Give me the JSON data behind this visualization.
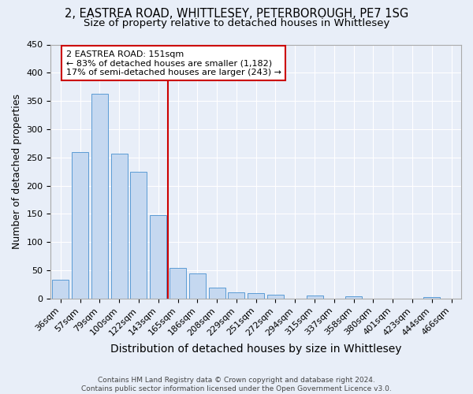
{
  "title1": "2, EASTREA ROAD, WHITTLESEY, PETERBOROUGH, PE7 1SG",
  "title2": "Size of property relative to detached houses in Whittlesey",
  "xlabel": "Distribution of detached houses by size in Whittlesey",
  "ylabel": "Number of detached properties",
  "categories": [
    "36sqm",
    "57sqm",
    "79sqm",
    "100sqm",
    "122sqm",
    "143sqm",
    "165sqm",
    "186sqm",
    "208sqm",
    "229sqm",
    "251sqm",
    "272sqm",
    "294sqm",
    "315sqm",
    "337sqm",
    "358sqm",
    "380sqm",
    "401sqm",
    "423sqm",
    "444sqm",
    "466sqm"
  ],
  "values": [
    33,
    260,
    363,
    257,
    225,
    148,
    55,
    44,
    19,
    11,
    10,
    7,
    0,
    6,
    0,
    4,
    0,
    0,
    0,
    3,
    0
  ],
  "bar_color": "#c5d8f0",
  "bar_edge_color": "#5b9bd5",
  "vline_x": 5.5,
  "vline_color": "#cc0000",
  "annotation_line1": "2 EASTREA ROAD: 151sqm",
  "annotation_line2": "← 83% of detached houses are smaller (1,182)",
  "annotation_line3": "17% of semi-detached houses are larger (243) →",
  "annotation_box_color": "#ffffff",
  "annotation_box_edge": "#cc0000",
  "ylim": [
    0,
    450
  ],
  "yticks": [
    0,
    50,
    100,
    150,
    200,
    250,
    300,
    350,
    400,
    450
  ],
  "background_color": "#e8eef8",
  "plot_bg_color": "#e8eef8",
  "grid_color": "#ffffff",
  "footer": "Contains HM Land Registry data © Crown copyright and database right 2024.\nContains public sector information licensed under the Open Government Licence v3.0.",
  "title1_fontsize": 10.5,
  "title2_fontsize": 9.5,
  "xlabel_fontsize": 10,
  "ylabel_fontsize": 9,
  "tick_fontsize": 8,
  "footer_fontsize": 6.5
}
